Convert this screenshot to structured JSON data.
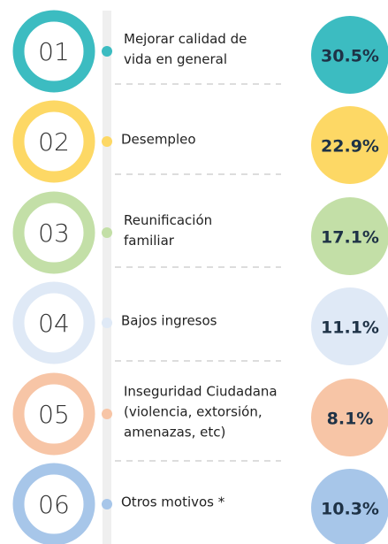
{
  "items": [
    {
      "number": "01",
      "label": [
        "Mejorar calidad de",
        "vida en general"
      ],
      "value": "30.5%",
      "color": "#3cbcc1"
    },
    {
      "number": "02",
      "label": [
        "Desempleo"
      ],
      "value": "22.9%",
      "color": "#fdd865"
    },
    {
      "number": "03",
      "label": [
        "Reunificación",
        "familiar"
      ],
      "value": "17.1%",
      "color": "#c3dfa7"
    },
    {
      "number": "04",
      "label": [
        "Bajos ingresos"
      ],
      "value": "11.1%",
      "color": "#dfe9f6"
    },
    {
      "number": "05",
      "label": [
        "Inseguridad Ciudadana",
        "(violencia, extorsión,",
        "amenazas, etc)"
      ],
      "value": "8.1%",
      "color": "#f7c5a6"
    },
    {
      "number": "06",
      "label": [
        "Otros motivos *"
      ],
      "value": "10.3%",
      "color": "#a7c6e9"
    }
  ]
}
